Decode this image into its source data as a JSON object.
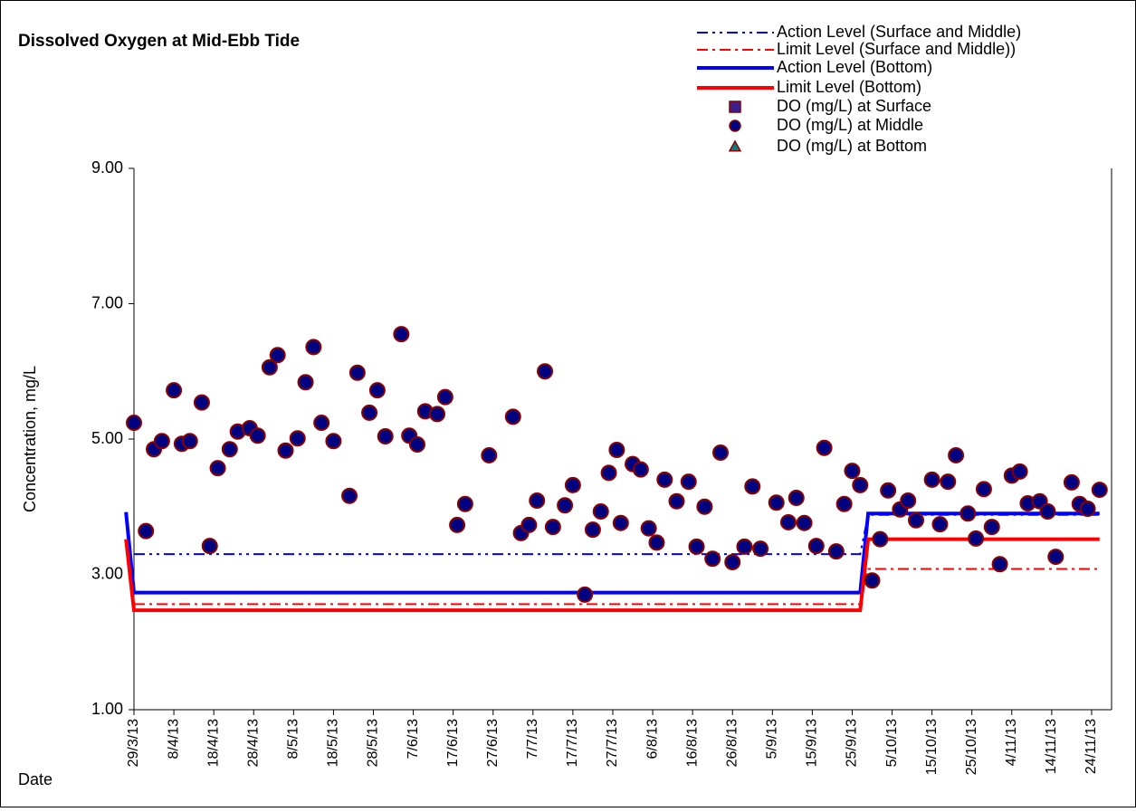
{
  "chart_data": {
    "type": "scatter",
    "title": "Dissolved Oxygen at Mid-Ebb Tide",
    "xlabel": "Date",
    "ylabel": "Concentration, mg/L",
    "legend": "upper right",
    "grid": false,
    "xlim": [
      "29/3/13",
      "29/11/13"
    ],
    "xticks": [
      "29/3/13",
      "8/4/13",
      "18/4/13",
      "28/4/13",
      "8/5/13",
      "18/5/13",
      "28/5/13",
      "7/6/13",
      "17/6/13",
      "27/6/13",
      "7/7/13",
      "17/7/13",
      "27/7/13",
      "6/8/13",
      "16/8/13",
      "26/8/13",
      "5/9/13",
      "15/9/13",
      "25/9/13",
      "5/10/13",
      "15/10/13",
      "25/10/13",
      "4/11/13",
      "14/11/13",
      "24/11/13"
    ],
    "ylim": [
      1,
      9
    ],
    "yticks": [
      {
        "value": 1,
        "label": "1.00"
      },
      {
        "value": 3,
        "label": "3.00"
      },
      {
        "value": 5,
        "label": "5.00"
      },
      {
        "value": 7,
        "label": "7.00"
      },
      {
        "value": 9,
        "label": "9.00"
      }
    ],
    "x": [
      "29/3/13",
      "1/4/13",
      "3/4/13",
      "5/4/13",
      "8/4/13",
      "10/4/13",
      "12/4/13",
      "15/4/13",
      "17/4/13",
      "19/4/13",
      "22/4/13",
      "24/4/13",
      "27/4/13",
      "29/4/13",
      "2/5/13",
      "4/5/13",
      "6/5/13",
      "9/5/13",
      "11/5/13",
      "13/5/13",
      "15/5/13",
      "18/5/13",
      "22/5/13",
      "24/5/13",
      "27/5/13",
      "29/5/13",
      "31/5/13",
      "4/6/13",
      "6/6/13",
      "8/6/13",
      "10/6/13",
      "13/6/13",
      "15/6/13",
      "18/6/13",
      "20/6/13",
      "26/6/13",
      "2/7/13",
      "4/7/13",
      "6/7/13",
      "8/7/13",
      "10/7/13",
      "12/7/13",
      "15/7/13",
      "17/7/13",
      "20/7/13",
      "22/7/13",
      "24/7/13",
      "26/7/13",
      "28/7/13",
      "29/7/13",
      "1/8/13",
      "3/8/13",
      "5/8/13",
      "7/8/13",
      "9/8/13",
      "12/8/13",
      "15/8/13",
      "17/8/13",
      "19/8/13",
      "21/8/13",
      "23/8/13",
      "26/8/13",
      "29/8/13",
      "31/8/13",
      "2/9/13",
      "6/9/13",
      "9/9/13",
      "11/9/13",
      "13/9/13",
      "16/9/13",
      "18/9/13",
      "21/9/13",
      "23/9/13",
      "25/9/13",
      "27/9/13",
      "30/9/13",
      "2/10/13",
      "4/10/13",
      "7/10/13",
      "9/10/13",
      "11/10/13",
      "15/10/13",
      "17/10/13",
      "19/10/13",
      "21/10/13",
      "24/10/13",
      "26/10/13",
      "28/10/13",
      "30/10/13",
      "1/11/13",
      "4/11/13",
      "6/11/13",
      "8/11/13",
      "11/11/13",
      "13/11/13",
      "15/11/13",
      "19/11/13",
      "21/11/13",
      "23/11/13",
      "26/11/13"
    ],
    "series": [
      {
        "name": "Action Level (Surface and Middle)",
        "color": "#0000ff",
        "kind": "line",
        "dash": "dash-dot-dot",
        "x": [
          "29/3/13",
          "27/9/13",
          "29/9/13",
          "26/11/13"
        ],
        "values": [
          3.3,
          3.3,
          3.88,
          3.88
        ]
      },
      {
        "name": "Limit Level (Surface and Middle))",
        "color": "#ff0000",
        "kind": "line",
        "dash": "dash-dot",
        "x": [
          "29/3/13",
          "27/9/13",
          "29/9/13",
          "26/11/13"
        ],
        "values": [
          2.56,
          2.56,
          3.08,
          3.08
        ]
      },
      {
        "name": "Action Level (Bottom)",
        "color": "#0000ff",
        "kind": "line",
        "dash": "solid",
        "x": [
          "27/3/13",
          "29/3/13",
          "27/9/13",
          "29/9/13",
          "26/11/13"
        ],
        "values": [
          3.92,
          2.73,
          2.73,
          3.9,
          3.9
        ]
      },
      {
        "name": "Limit Level (Bottom)",
        "color": "#ff0000",
        "kind": "line",
        "dash": "solid",
        "x": [
          "27/3/13",
          "29/3/13",
          "27/9/13",
          "29/9/13",
          "26/11/13"
        ],
        "values": [
          3.52,
          2.47,
          2.47,
          3.52,
          3.52
        ]
      },
      {
        "name": "DO (mg/L) at Surface",
        "color": "#3a1f8f",
        "kind": "marker",
        "marker": "square",
        "values": [
          null,
          null,
          null,
          null,
          null,
          null,
          null,
          null,
          null,
          null,
          null,
          null,
          null,
          null,
          null,
          null,
          null,
          null,
          null,
          null,
          null,
          null,
          null,
          null,
          null,
          null,
          null,
          null,
          null,
          null,
          null,
          null,
          null,
          null,
          null,
          null,
          null,
          null,
          null,
          null,
          null,
          null,
          null,
          null,
          null,
          null,
          null,
          null,
          null,
          null,
          null,
          null,
          null,
          null,
          null,
          null,
          null,
          null,
          null,
          null,
          null,
          null,
          null,
          null,
          null,
          null,
          null,
          null,
          null,
          null,
          null,
          null,
          null,
          null,
          null,
          null,
          null,
          null,
          null,
          null,
          null,
          null,
          null,
          null,
          null,
          null,
          null,
          null,
          null,
          null,
          null,
          null,
          null,
          null,
          null,
          null,
          null,
          null,
          null,
          null
        ]
      },
      {
        "name": "DO (mg/L) at Middle",
        "color": "#000080",
        "kind": "marker",
        "marker": "circle",
        "values": [
          5.24,
          3.64,
          4.85,
          4.97,
          5.72,
          4.93,
          4.97,
          5.54,
          3.42,
          4.57,
          4.85,
          5.11,
          5.16,
          5.05,
          6.06,
          6.24,
          4.83,
          5.01,
          5.84,
          6.36,
          5.24,
          4.97,
          4.16,
          5.98,
          5.39,
          5.72,
          5.04,
          6.55,
          5.05,
          4.92,
          5.41,
          5.37,
          5.62,
          3.73,
          4.04,
          4.76,
          5.33,
          3.61,
          3.73,
          4.09,
          6.0,
          3.7,
          4.02,
          4.32,
          2.7,
          3.66,
          3.93,
          4.5,
          4.84,
          3.76,
          4.63,
          4.55,
          3.68,
          3.47,
          4.4,
          4.08,
          4.37,
          3.41,
          4.0,
          3.23,
          4.8,
          3.18,
          3.41,
          4.3,
          3.38,
          4.06,
          3.77,
          4.13,
          3.76,
          3.42,
          4.87,
          3.34,
          4.04,
          4.53,
          4.32,
          2.91,
          3.52,
          4.24,
          3.96,
          4.09,
          3.8,
          4.4,
          3.74,
          4.37,
          4.76,
          3.9,
          3.53,
          4.26,
          3.7,
          3.15,
          4.46,
          4.52,
          4.05,
          4.08,
          3.93,
          3.26,
          4.36,
          4.04,
          3.97,
          4.25
        ]
      },
      {
        "name": "DO (mg/L) at Bottom",
        "color": "#008080",
        "kind": "marker",
        "marker": "triangle",
        "values": [
          null,
          null,
          null,
          null,
          null,
          null,
          null,
          null,
          null,
          null,
          null,
          null,
          null,
          null,
          null,
          null,
          null,
          null,
          null,
          null,
          null,
          null,
          null,
          null,
          null,
          null,
          null,
          null,
          null,
          null,
          null,
          null,
          null,
          null,
          null,
          null,
          null,
          null,
          null,
          null,
          null,
          null,
          null,
          null,
          null,
          null,
          null,
          null,
          null,
          null,
          null,
          null,
          null,
          null,
          null,
          null,
          null,
          null,
          null,
          null,
          null,
          null,
          null,
          null,
          null,
          null,
          null,
          null,
          null,
          null,
          null,
          null,
          null,
          null,
          null,
          null,
          null,
          null,
          null,
          null,
          null,
          null,
          null,
          null,
          null,
          null,
          null,
          null,
          null,
          null,
          null,
          null,
          null,
          null,
          null,
          null,
          null,
          null,
          null,
          null
        ]
      }
    ]
  }
}
